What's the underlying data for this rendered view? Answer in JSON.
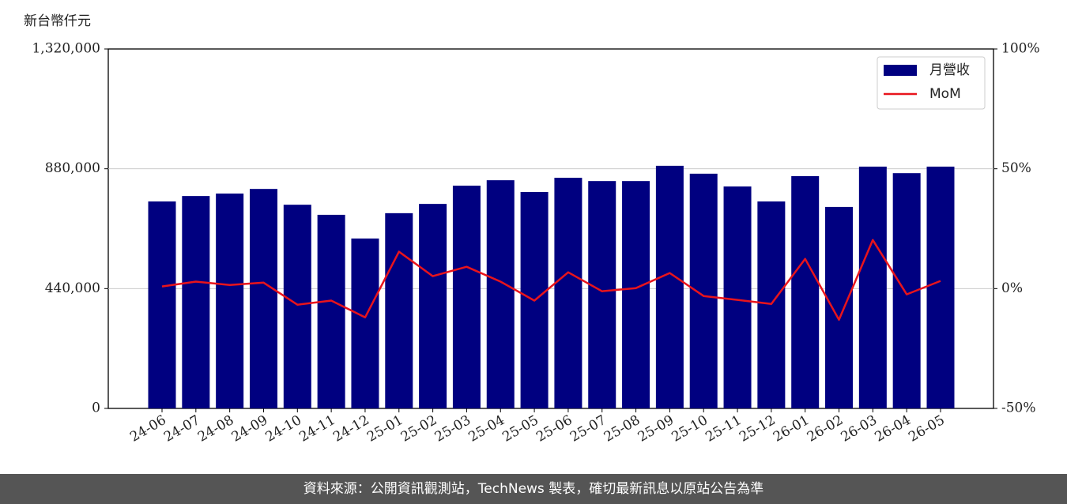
{
  "chart_data": {
    "type": "bar-line",
    "y_label": "新台幣仟元",
    "categories": [
      "24-06",
      "24-07",
      "24-08",
      "24-09",
      "24-10",
      "24-11",
      "24-12",
      "25-01",
      "25-02",
      "25-03",
      "25-04",
      "25-05",
      "25-06",
      "25-07",
      "25-08",
      "25-09",
      "25-10",
      "25-11",
      "25-12",
      "26-01",
      "26-02",
      "26-03",
      "26-04",
      "26-05"
    ],
    "series": [
      {
        "name": "月營收",
        "type": "bar",
        "color": "#000080",
        "values": [
          760000,
          780000,
          789000,
          806000,
          748000,
          711000,
          624000,
          717000,
          751000,
          818000,
          838000,
          795000,
          847000,
          835000,
          835000,
          891000,
          862000,
          815000,
          760000,
          853000,
          740000,
          888000,
          864000,
          888000
        ]
      },
      {
        "name": "MoM",
        "type": "line",
        "axis": "y2",
        "color": "#e8141c",
        "values": [
          0.9,
          2.9,
          1.5,
          2.5,
          -6.7,
          -5,
          -12,
          15.4,
          5.2,
          9.1,
          2.9,
          -5,
          6.8,
          -1.1,
          0.2,
          6.5,
          -3.1,
          -4.7,
          -6.4,
          12.4,
          -13,
          20.3,
          -2.4,
          3.2
        ]
      }
    ],
    "ylim": [
      0,
      1320000
    ],
    "yticks": [
      0,
      {
        "value": 440000,
        "label": "440,000"
      },
      {
        "value": 880000,
        "label": "880,000"
      },
      {
        "value": 1320000,
        "label": "1,320,000"
      }
    ],
    "y2lim": [
      -50,
      100
    ],
    "y2ticks": [
      {
        "value": -50,
        "label": "-50%"
      },
      {
        "value": 0,
        "label": "0%"
      },
      {
        "value": 50,
        "label": "50%"
      },
      {
        "value": 100,
        "label": "100%"
      }
    ],
    "grid": true,
    "legend": "upper right",
    "footer": "資料來源：公開資訊觀測站，TechNews 製表，確切最新訊息以原站公告為準"
  }
}
